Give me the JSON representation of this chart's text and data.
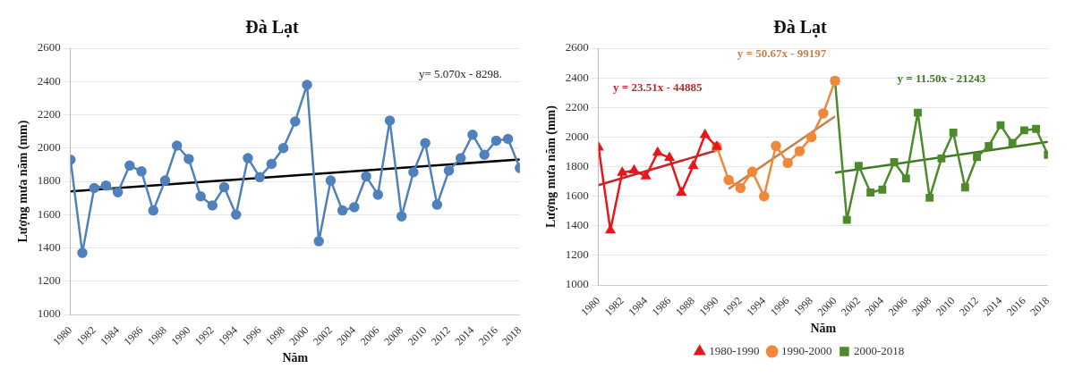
{
  "chart_data": [
    {
      "type": "line",
      "title": "Đà Lạt",
      "xlabel": "Năm",
      "ylabel": "Lượng mưa năm (mm)",
      "x": [
        1980,
        1981,
        1982,
        1983,
        1984,
        1985,
        1986,
        1987,
        1988,
        1989,
        1990,
        1991,
        1992,
        1993,
        1994,
        1995,
        1996,
        1997,
        1998,
        1999,
        2000,
        2001,
        2002,
        2003,
        2004,
        2005,
        2006,
        2007,
        2008,
        2009,
        2010,
        2011,
        2012,
        2013,
        2014,
        2015,
        2016,
        2017,
        2018
      ],
      "series": [
        {
          "color": "#4f81bd",
          "marker": "circle",
          "values": [
            1930,
            1370,
            1760,
            1775,
            1735,
            1895,
            1860,
            1625,
            1805,
            2015,
            1935,
            1710,
            1655,
            1765,
            1600,
            1940,
            1825,
            1905,
            2000,
            2160,
            2380,
            1440,
            1805,
            1625,
            1645,
            1830,
            1720,
            2165,
            1590,
            1855,
            2030,
            1660,
            1865,
            1940,
            2080,
            1960,
            2045,
            2055,
            1880
          ]
        },
        {
          "type": "line",
          "color": "#000000",
          "marker": "none",
          "x": [
            1980,
            2018
          ],
          "values": [
            1740,
            1932
          ]
        }
      ],
      "xlim": [
        1980,
        2018
      ],
      "xticks": [
        1980,
        1982,
        1984,
        1986,
        1988,
        1990,
        1992,
        1994,
        1996,
        1998,
        2000,
        2002,
        2004,
        2006,
        2008,
        2010,
        2012,
        2014,
        2016,
        2018
      ],
      "ylim": [
        1000,
        2600
      ],
      "yticks": [
        1000,
        1200,
        1400,
        1600,
        1800,
        2000,
        2200,
        2400,
        2600
      ],
      "grid": "y",
      "legend": false,
      "annotations": [
        "y= 5.070x - 8298."
      ]
    },
    {
      "type": "line",
      "title": "Đà Lạt",
      "xlabel": "Năm",
      "ylabel": "Lượng mưa năm (mm)",
      "series": [
        {
          "name": "1980-1990",
          "color": "#e8161b",
          "marker": "triangle",
          "x": [
            1980,
            1981,
            1982,
            1983,
            1984,
            1985,
            1986,
            1987,
            1988,
            1989,
            1990
          ],
          "values": [
            1930,
            1370,
            1760,
            1775,
            1735,
            1895,
            1860,
            1625,
            1805,
            2015,
            1935
          ]
        },
        {
          "name": "1990-2000",
          "color": "#f0873a",
          "marker": "circle",
          "x": [
            1990,
            1991,
            1992,
            1993,
            1994,
            1995,
            1996,
            1997,
            1998,
            1999,
            2000
          ],
          "values": [
            1935,
            1710,
            1655,
            1765,
            1600,
            1940,
            1825,
            1905,
            2000,
            2160,
            2380
          ]
        },
        {
          "name": "2000-2018",
          "color": "#4e8a2c",
          "marker": "square",
          "x": [
            2000,
            2001,
            2002,
            2003,
            2004,
            2005,
            2006,
            2007,
            2008,
            2009,
            2010,
            2011,
            2012,
            2013,
            2014,
            2015,
            2016,
            2017,
            2018
          ],
          "values": [
            2380,
            1440,
            1805,
            1625,
            1645,
            1830,
            1720,
            2165,
            1590,
            1855,
            2030,
            1660,
            1865,
            1940,
            2080,
            1960,
            2045,
            2055,
            1880
          ]
        },
        {
          "type": "line",
          "color": "#c0282d",
          "marker": "none",
          "x": [
            1980,
            1990
          ],
          "values": [
            1675,
            1910
          ]
        },
        {
          "type": "line",
          "color": "#c8804a",
          "marker": "none",
          "x": [
            1991,
            2000
          ],
          "values": [
            1650,
            2140
          ]
        },
        {
          "type": "line",
          "color": "#3e7a22",
          "marker": "none",
          "x": [
            2000,
            2018
          ],
          "values": [
            1760,
            1967
          ]
        }
      ],
      "xlim": [
        1980,
        2018
      ],
      "xticks": [
        1980,
        1982,
        1984,
        1986,
        1988,
        1990,
        1992,
        1994,
        1996,
        1998,
        2000,
        2002,
        2004,
        2006,
        2008,
        2010,
        2012,
        2014,
        2016,
        2018
      ],
      "ylim": [
        1000,
        2600
      ],
      "yticks": [
        1000,
        1200,
        1400,
        1600,
        1800,
        2000,
        2200,
        2400,
        2600
      ],
      "grid": "y",
      "legend": "bottom",
      "annotations": [
        "y = 23.51x - 44885",
        "y = 50.67x - 99197",
        "y = 11.50x - 21243"
      ]
    }
  ]
}
